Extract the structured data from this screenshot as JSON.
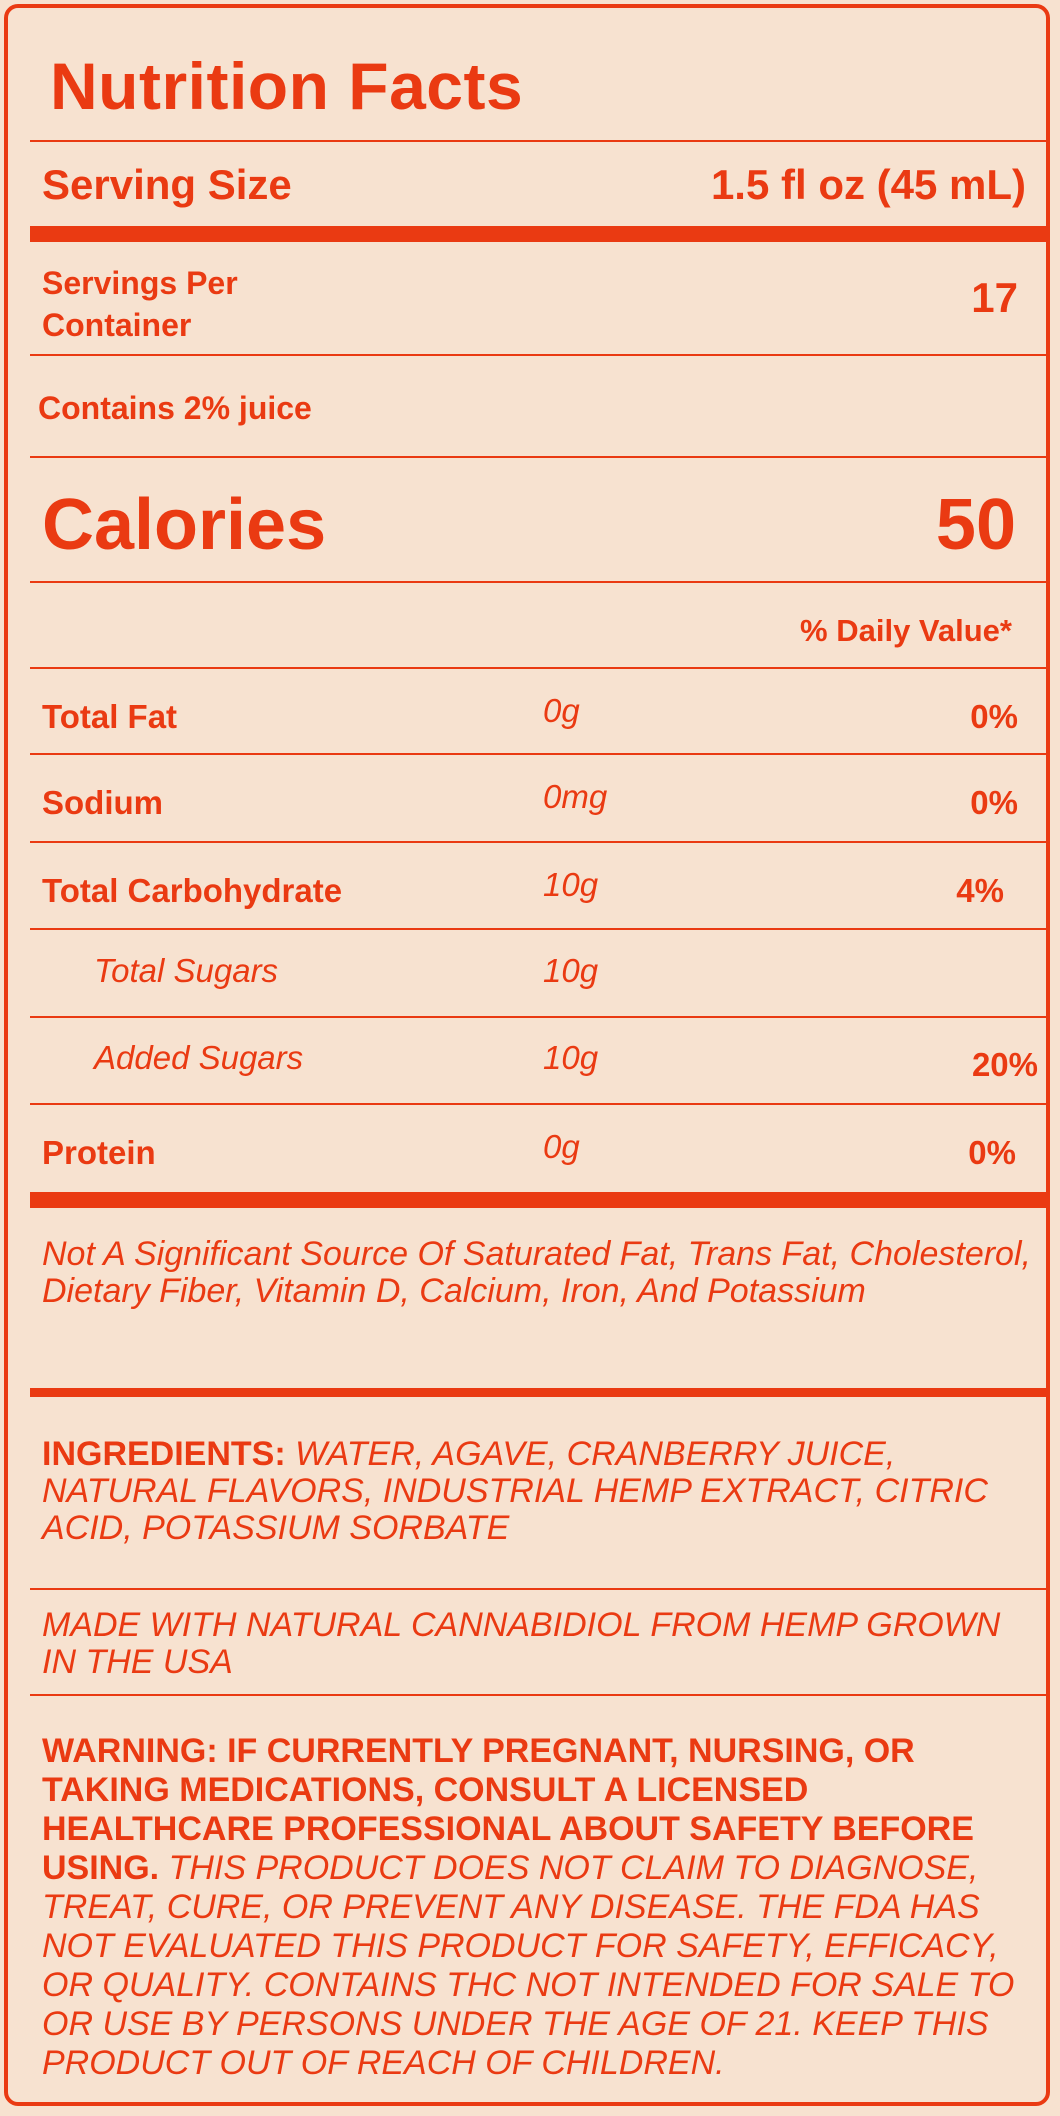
{
  "title": "Nutrition Facts",
  "serving_size": {
    "label": "Serving Size",
    "value": "1.5 fl oz (45 mL)"
  },
  "servings_per_container": {
    "label": "Servings Per Container",
    "value": "17"
  },
  "juice_note": "Contains 2% juice",
  "calories": {
    "label": "Calories",
    "value": "50"
  },
  "daily_value_header": "% Daily Value*",
  "nutrients": [
    {
      "name": "Total Fat",
      "amount": "0g",
      "dv": "0%"
    },
    {
      "name": "Sodium",
      "amount": "0mg",
      "dv": "0%"
    },
    {
      "name": "Total Carbohydrate",
      "amount": "10g",
      "dv": "4%"
    },
    {
      "name": "Total Sugars",
      "amount": "10g",
      "dv": ""
    },
    {
      "name": "Added Sugars",
      "amount": "10g",
      "dv": "20%"
    },
    {
      "name": "Protein",
      "amount": "0g",
      "dv": "0%"
    }
  ],
  "not_significant": "Not A Significant Source Of Saturated Fat, Trans Fat, Cholesterol, Dietary Fiber, Vitamin D, Calcium, Iron, And Potassium",
  "ingredients": {
    "label": "INGREDIENTS:",
    "text": "WATER, AGAVE, CRANBERRY JUICE, NATURAL FLAVORS, INDUSTRIAL HEMP EXTRACT, CITRIC ACID, POTASSIUM SORBATE"
  },
  "made_with": "MADE WITH NATURAL CANNABIDIOL FROM HEMP GROWN IN THE USA",
  "warning": {
    "bold": "WARNING: IF CURRENTLY PREGNANT, NURSING, OR TAKING MEDICATIONS, CONSULT A LICENSED HEALTHCARE PROFESSIONAL ABOUT SAFETY BEFORE USING.",
    "italic": "THIS PRODUCT DOES NOT CLAIM TO DIAGNOSE, TREAT, CURE, OR PREVENT ANY DISEASE. THE FDA HAS NOT EVALUATED THIS PRODUCT FOR SAFETY, EFFICACY, OR QUALITY. CONTAINS THC NOT INTENDED FOR SALE TO OR USE BY PERSONS UNDER THE AGE OF 21. KEEP THIS PRODUCT OUT OF REACH OF CHILDREN."
  },
  "colors": {
    "accent": "#ea3a12",
    "background": "#f7e2d0"
  }
}
